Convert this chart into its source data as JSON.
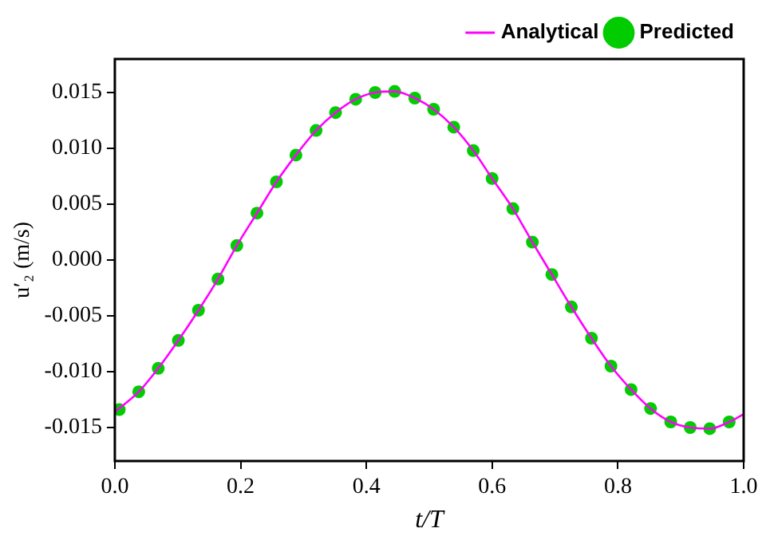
{
  "chart_data": {
    "type": "line",
    "xlabel": "t/T",
    "ylabel": "u′₂ (m/s)",
    "xlim": [
      0,
      1
    ],
    "xticks": [
      {
        "value": 0,
        "label": "0.0"
      },
      0.2,
      0.4,
      0.6,
      0.8,
      {
        "value": 1,
        "label": "1.0"
      }
    ],
    "ylim": [
      -0.018,
      0.018
    ],
    "yticks": [
      {
        "value": -0.015,
        "label": "-0.015"
      },
      {
        "value": -0.01,
        "label": "-0.010"
      },
      {
        "value": -0.005,
        "label": "-0.005"
      },
      {
        "value": 0,
        "label": "0.000"
      },
      {
        "value": 0.005,
        "label": "0.005"
      },
      {
        "value": 0.01,
        "label": "0.010"
      },
      {
        "value": 0.015,
        "label": "0.015"
      }
    ],
    "grid": false,
    "legend": "top right",
    "series": [
      {
        "name": "Analytical",
        "color": "#ff00ff",
        "marker": "none",
        "line_style": "solid",
        "x": [
          0,
          0.038,
          0.069,
          0.101,
          0.133,
          0.164,
          0.194,
          0.226,
          0.257,
          0.288,
          0.32,
          0.351,
          0.383,
          0.414,
          0.445,
          0.477,
          0.507,
          0.539,
          0.57,
          0.6,
          0.633,
          0.664,
          0.695,
          0.726,
          0.758,
          0.789,
          0.821,
          0.852,
          0.884,
          0.915,
          0.946,
          0.977,
          1
        ],
        "values": [
          -0.0136,
          -0.0118,
          -0.0097,
          -0.0072,
          -0.0045,
          -0.0017,
          0.0013,
          0.0042,
          0.007,
          0.0094,
          0.0116,
          0.0132,
          0.0144,
          0.015,
          0.0151,
          0.0145,
          0.0135,
          0.0119,
          0.0098,
          0.0073,
          0.0046,
          0.0016,
          -0.0013,
          -0.0042,
          -0.007,
          -0.0095,
          -0.0116,
          -0.0133,
          -0.0145,
          -0.015,
          -0.0151,
          -0.0145,
          -0.0138
        ]
      },
      {
        "name": "Predicted",
        "type": "scatter",
        "color": "#00cc00",
        "marker": "circle",
        "x": [
          0.007,
          0.038,
          0.069,
          0.101,
          0.133,
          0.164,
          0.194,
          0.226,
          0.257,
          0.288,
          0.32,
          0.351,
          0.383,
          0.414,
          0.445,
          0.477,
          0.507,
          0.539,
          0.57,
          0.6,
          0.633,
          0.664,
          0.695,
          0.726,
          0.758,
          0.789,
          0.821,
          0.852,
          0.884,
          0.915,
          0.946,
          0.977
        ],
        "values": [
          -0.0134,
          -0.0118,
          -0.0097,
          -0.0072,
          -0.0045,
          -0.0017,
          0.0013,
          0.0042,
          0.007,
          0.0094,
          0.0116,
          0.0132,
          0.0144,
          0.015,
          0.0151,
          0.0145,
          0.0135,
          0.0119,
          0.0098,
          0.0073,
          0.0046,
          0.0016,
          -0.0013,
          -0.0042,
          -0.007,
          -0.0095,
          -0.0116,
          -0.0133,
          -0.0145,
          -0.015,
          -0.0151,
          -0.0145
        ]
      }
    ]
  }
}
